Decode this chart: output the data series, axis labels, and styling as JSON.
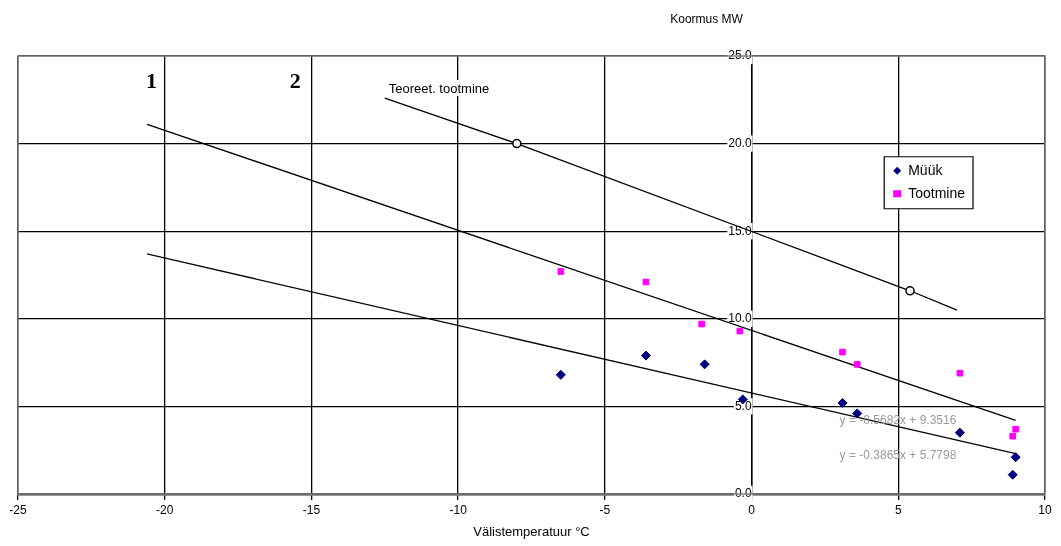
{
  "chart_data": {
    "type": "scatter",
    "xlabel": "Välistemperatuur °C",
    "ylabel": "Koormus MW",
    "xlim": [
      -25,
      10
    ],
    "xticks": [
      -25,
      -20,
      -15,
      -10,
      -5,
      0,
      5,
      10
    ],
    "ylim": [
      0,
      25
    ],
    "yticks": [
      {
        "value": 0,
        "label": "0.0"
      },
      {
        "value": 5,
        "label": "5.0"
      },
      {
        "value": 10,
        "label": "10.0"
      },
      {
        "value": 15,
        "label": "15.0"
      },
      {
        "value": 20,
        "label": "20.0"
      },
      {
        "value": 25,
        "label": "25.0"
      }
    ],
    "grid": true,
    "legend": "right",
    "series": [
      {
        "name": "Müük",
        "color": "#000080",
        "marker": "diamond",
        "x": [
          -6.5,
          -3.6,
          -1.6,
          -0.3,
          3.1,
          3.6,
          7.1,
          9.0,
          8.9
        ],
        "values": [
          6.8,
          7.9,
          7.4,
          5.4,
          5.2,
          4.6,
          3.5,
          2.1,
          1.1
        ]
      },
      {
        "name": "Tootmine",
        "color": "#ff00ff",
        "marker": "square",
        "x": [
          -6.5,
          -3.6,
          -1.7,
          -0.4,
          3.1,
          3.6,
          7.1,
          9.0,
          8.9
        ],
        "values": [
          12.7,
          12.1,
          9.7,
          9.3,
          8.1,
          7.4,
          6.9,
          3.7,
          3.3
        ]
      },
      {
        "type": "line",
        "color": "#000000",
        "marker": "none",
        "x": [
          -20.6,
          9.0
        ],
        "values": [
          21.1,
          4.2
        ]
      },
      {
        "type": "line",
        "color": "#000000",
        "marker": "none",
        "x": [
          -20.6,
          9.0
        ],
        "values": [
          13.7,
          2.3
        ]
      },
      {
        "type": "line",
        "name": "Teoreet. tootmine",
        "color": "#000000",
        "marker": "none",
        "x": [
          -12.5,
          -8.0,
          5.4,
          7.0
        ],
        "values": [
          22.6,
          20.0,
          11.6,
          10.5
        ]
      },
      {
        "color": "#000000",
        "marker": "circle",
        "x": [
          -8.0,
          5.4
        ],
        "values": [
          20.0,
          11.6
        ]
      }
    ],
    "annotations": [
      "1",
      "2",
      "y = -0.5682x + 9.3516",
      "y = -0.3865x + 5.7798"
    ]
  }
}
